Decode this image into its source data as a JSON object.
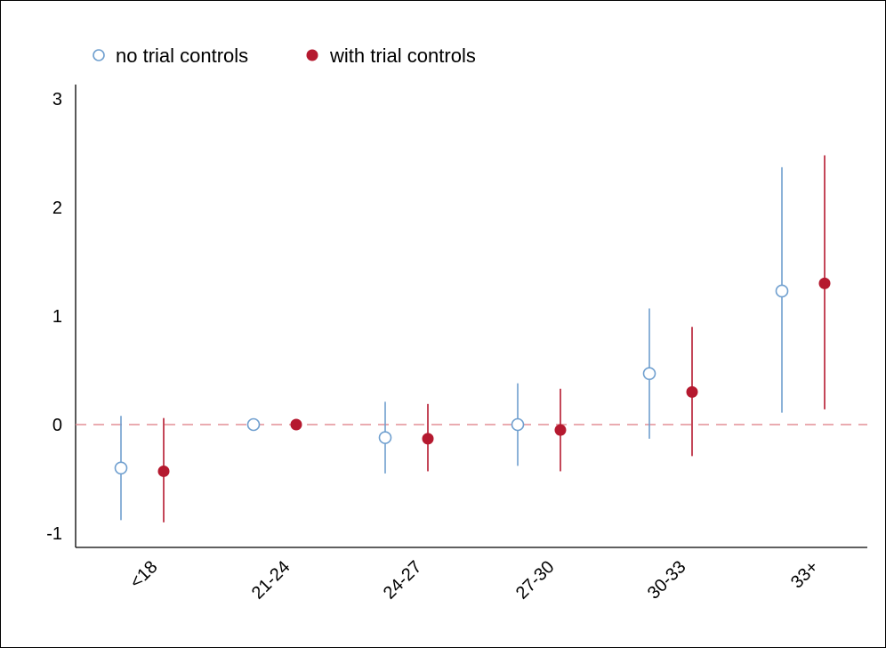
{
  "chart_data": {
    "type": "scatter",
    "categories": [
      "<18",
      "21-24",
      "24-27",
      "27-30",
      "30-33",
      "33+"
    ],
    "ylim": [
      -1.1,
      3.1
    ],
    "yticks": [
      -1,
      0,
      1,
      2,
      3
    ],
    "ytick_labels": [
      "-1",
      "0",
      "1",
      "2",
      "3"
    ],
    "reference_line": {
      "y": 0,
      "style": "dashed",
      "color": "#e38f96"
    },
    "grid": false,
    "legend_position": "top-left",
    "series": [
      {
        "name": "no trial controls",
        "marker": "hollow-circle",
        "color": "#6f9fcf",
        "values": [
          -0.4,
          0.0,
          -0.12,
          0.0,
          0.47,
          1.23
        ],
        "ci_low": [
          -0.88,
          0.0,
          -0.45,
          -0.38,
          -0.13,
          0.11
        ],
        "ci_high": [
          0.08,
          0.0,
          0.21,
          0.38,
          1.07,
          2.37
        ]
      },
      {
        "name": "with trial controls",
        "marker": "filled-circle",
        "color": "#b5192f",
        "values": [
          -0.43,
          0.0,
          -0.13,
          -0.05,
          0.3,
          1.3
        ],
        "ci_low": [
          -0.9,
          0.0,
          -0.43,
          -0.43,
          -0.29,
          0.14
        ],
        "ci_high": [
          0.06,
          0.0,
          0.19,
          0.33,
          0.9,
          2.48
        ]
      }
    ],
    "colors": {
      "axis": "#000000",
      "background": "#ffffff"
    }
  }
}
